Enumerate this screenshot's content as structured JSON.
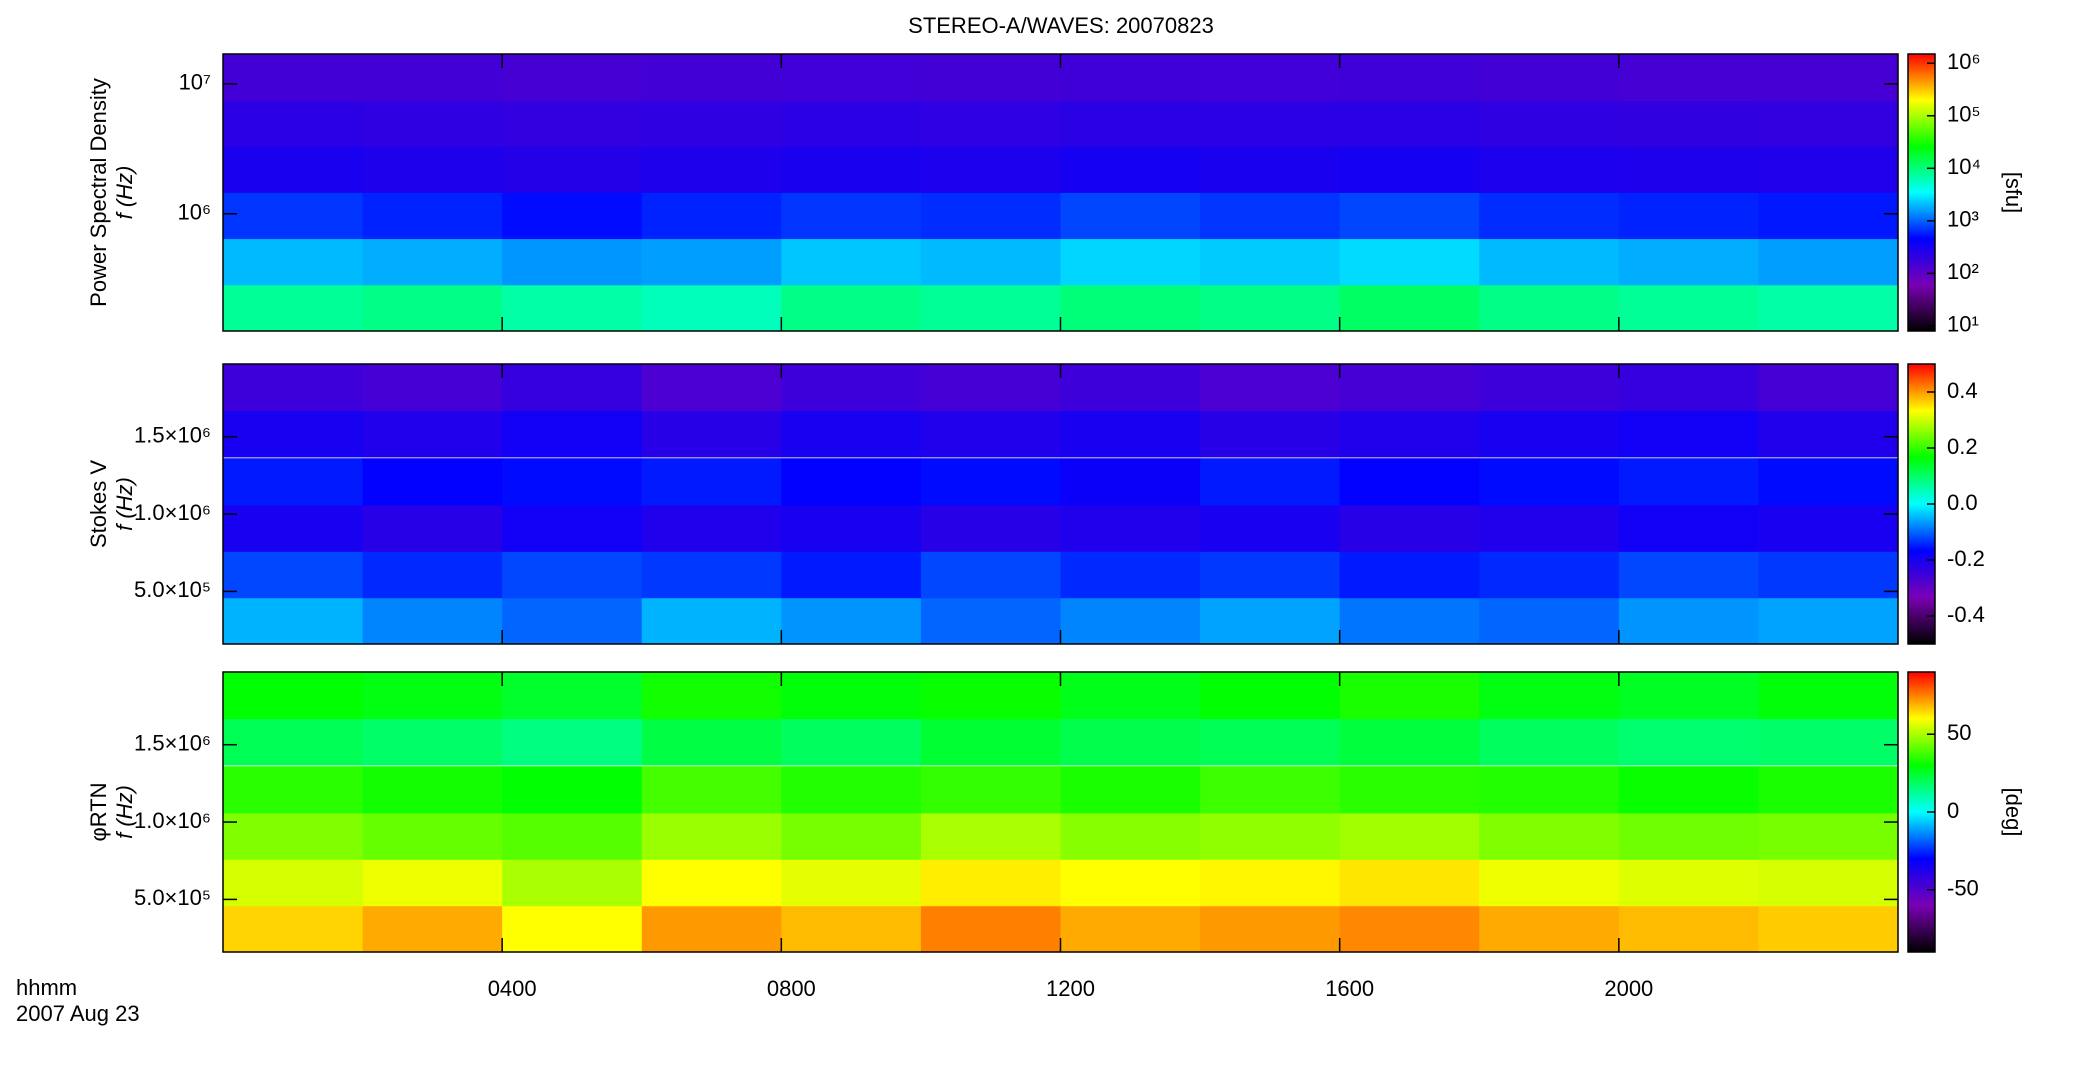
{
  "chart_data": [
    {
      "type": "heatmap",
      "title": "STEREO-A/WAVES: 20070823",
      "y_label": [
        "Power Spectral Density",
        "f (Hz)"
      ],
      "colorbar_label": "[sfu]",
      "x": [
        1,
        3,
        5,
        7,
        9,
        11,
        13,
        15,
        17,
        19,
        21,
        23
      ],
      "xlim": [
        0,
        24
      ],
      "xticks": [
        4,
        8,
        12,
        16,
        20
      ],
      "y": [
        188000,
        427000,
        970000,
        2200000,
        5000000,
        11200000
      ],
      "ylim": [
        125000,
        17000000
      ],
      "log_y": true,
      "yticks": [
        {
          "value": 1000000,
          "label": "10⁶"
        },
        {
          "value": 10000000,
          "label": "10⁷"
        }
      ],
      "z": [
        [
          8000,
          9000,
          7000,
          6000,
          9000,
          8000,
          10000,
          9000,
          12000,
          9000,
          8000,
          7000
        ],
        [
          2000,
          1800,
          1500,
          1600,
          2200,
          2000,
          2500,
          2300,
          2600,
          2000,
          1800,
          1600
        ],
        [
          700,
          600,
          500,
          600,
          700,
          650,
          800,
          700,
          800,
          650,
          600,
          550
        ],
        [
          300,
          280,
          250,
          280,
          300,
          290,
          320,
          300,
          320,
          290,
          280,
          270
        ],
        [
          220,
          210,
          200,
          210,
          220,
          215,
          230,
          220,
          230,
          210,
          205,
          200
        ],
        [
          150,
          150,
          140,
          150,
          155,
          150,
          160,
          155,
          160,
          150,
          145,
          140
        ]
      ],
      "clim": [
        8,
        1500000
      ],
      "log_color": true,
      "cticks": [
        {
          "value": 10,
          "label": "10¹"
        },
        {
          "value": 100,
          "label": "10²"
        },
        {
          "value": 1000,
          "label": "10³"
        },
        {
          "value": 10000,
          "label": "10⁴"
        },
        {
          "value": 100000,
          "label": "10⁵"
        },
        {
          "value": 1000000,
          "label": "10⁶"
        }
      ],
      "colormap": [
        "#000000",
        "#7a00b4",
        "#0000ff",
        "#00ffff",
        "#00ff00",
        "#ffff00",
        "#ff0000"
      ]
    },
    {
      "type": "heatmap",
      "y_label": [
        "Stokes V",
        "f (Hz)"
      ],
      "x": [
        1,
        3,
        5,
        7,
        9,
        11,
        13,
        15,
        17,
        19,
        21,
        23
      ],
      "xlim": [
        0,
        24
      ],
      "xticks": [
        4,
        8,
        12,
        16,
        20
      ],
      "y": [
        310000,
        610000,
        910000,
        1210000,
        1520000,
        1820000
      ],
      "ylim": [
        160000,
        1970000
      ],
      "yticks": [
        {
          "value": 500000,
          "label": "5.0×10⁵"
        },
        {
          "value": 1000000,
          "label": "1.0×10⁶"
        },
        {
          "value": 1500000,
          "label": "1.5×10⁶"
        }
      ],
      "z": [
        [
          -0.05,
          -0.08,
          -0.1,
          -0.05,
          -0.07,
          -0.1,
          -0.08,
          -0.06,
          -0.09,
          -0.1,
          -0.07,
          -0.06
        ],
        [
          -0.12,
          -0.14,
          -0.12,
          -0.13,
          -0.15,
          -0.12,
          -0.14,
          -0.13,
          -0.15,
          -0.14,
          -0.12,
          -0.13
        ],
        [
          -0.2,
          -0.22,
          -0.19,
          -0.21,
          -0.2,
          -0.22,
          -0.21,
          -0.2,
          -0.22,
          -0.21,
          -0.19,
          -0.2
        ],
        [
          -0.15,
          -0.17,
          -0.16,
          -0.15,
          -0.17,
          -0.16,
          -0.18,
          -0.15,
          -0.17,
          -0.16,
          -0.15,
          -0.16
        ],
        [
          -0.2,
          -0.21,
          -0.19,
          -0.22,
          -0.2,
          -0.21,
          -0.2,
          -0.22,
          -0.21,
          -0.2,
          -0.19,
          -0.21
        ],
        [
          -0.25,
          -0.26,
          -0.24,
          -0.27,
          -0.25,
          -0.26,
          -0.25,
          -0.27,
          -0.26,
          -0.25,
          -0.24,
          -0.26
        ]
      ],
      "clim": [
        -0.5,
        0.5
      ],
      "cticks": [
        -0.4,
        -0.2,
        {
          "value": 0,
          "label": "0.0"
        },
        0.2,
        0.4
      ],
      "colormap": [
        "#000000",
        "#7a00b4",
        "#0000ff",
        "#00ffff",
        "#00ff00",
        "#ffff00",
        "#ff0000"
      ]
    },
    {
      "type": "heatmap",
      "y_label": [
        "φRTN",
        "f (Hz)"
      ],
      "colorbar_label": "[deg]",
      "x_label": "hhmm",
      "date": "2007 Aug 23",
      "x": [
        1,
        3,
        5,
        7,
        9,
        11,
        13,
        15,
        17,
        19,
        21,
        23
      ],
      "xlim": [
        0,
        24
      ],
      "xticks": [
        {
          "value": 4,
          "label": "0400"
        },
        {
          "value": 8,
          "label": "0800"
        },
        {
          "value": 12,
          "label": "1200"
        },
        {
          "value": 16,
          "label": "1600"
        },
        {
          "value": 20,
          "label": "2000"
        }
      ],
      "y": [
        310000,
        610000,
        910000,
        1210000,
        1520000,
        1820000
      ],
      "ylim": [
        160000,
        1970000
      ],
      "yticks": [
        {
          "value": 500000,
          "label": "5.0×10⁵"
        },
        {
          "value": 1000000,
          "label": "1.0×10⁶"
        },
        {
          "value": 1500000,
          "label": "1.5×10⁶"
        }
      ],
      "z": [
        [
          65,
          70,
          60,
          72,
          68,
          75,
          70,
          72,
          74,
          70,
          68,
          66
        ],
        [
          55,
          58,
          50,
          60,
          57,
          62,
          60,
          61,
          63,
          58,
          56,
          55
        ],
        [
          45,
          42,
          40,
          48,
          44,
          50,
          46,
          47,
          49,
          45,
          43,
          44
        ],
        [
          35,
          32,
          30,
          38,
          34,
          36,
          33,
          37,
          35,
          34,
          31,
          33
        ],
        [
          20,
          18,
          15,
          22,
          19,
          24,
          21,
          20,
          23,
          19,
          17,
          18
        ],
        [
          30,
          28,
          25,
          32,
          29,
          31,
          27,
          30,
          33,
          28,
          26,
          29
        ]
      ],
      "clim": [
        -90,
        90
      ],
      "cticks": [
        -50,
        0,
        50
      ],
      "colormap": [
        "#000000",
        "#7a00b4",
        "#0000ff",
        "#00ffff",
        "#00ff00",
        "#ffff00",
        "#ff0000"
      ]
    }
  ]
}
